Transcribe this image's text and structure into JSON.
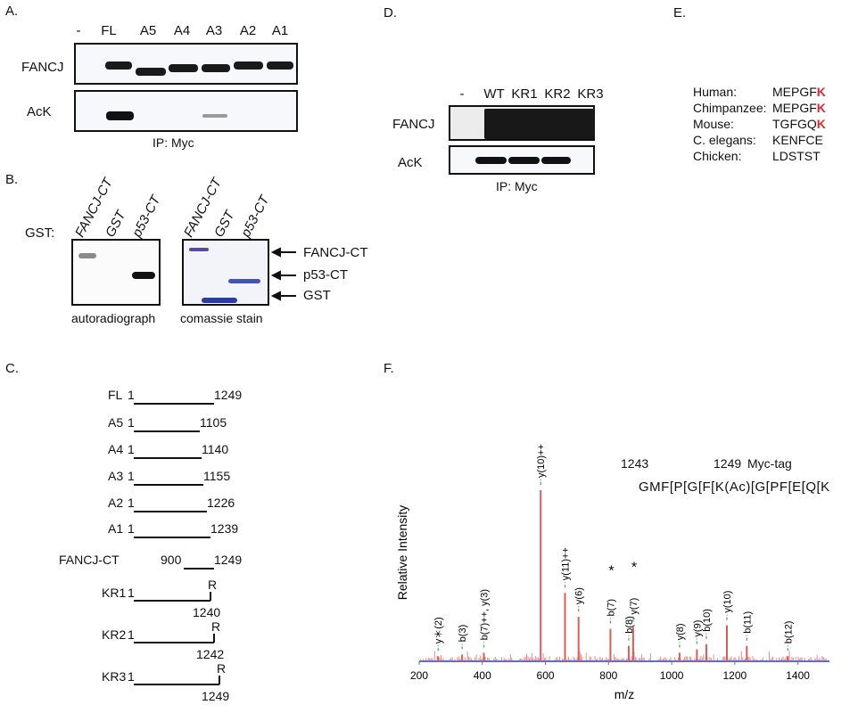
{
  "panel_labels": {
    "a": "A.",
    "b": "B.",
    "c": "C.",
    "d": "D.",
    "e": "E.",
    "f": "F."
  },
  "panel_a": {
    "lanes": [
      "-",
      "FL",
      "A5",
      "A4",
      "A3",
      "A2",
      "A1"
    ],
    "rows": [
      "FANCJ",
      "AcK"
    ],
    "caption": "IP: Myc"
  },
  "panel_b": {
    "gst_label": "GST:",
    "lanes": [
      "FANCJ-CT",
      "GST",
      "p53-CT"
    ],
    "arrows": [
      "FANCJ-CT",
      "p53-CT",
      "GST"
    ],
    "captions": [
      "autoradiograph",
      "comassie stain"
    ]
  },
  "panel_c": {
    "constructs": [
      {
        "name": "FL",
        "start": "1",
        "end": "1249"
      },
      {
        "name": "A5",
        "start": "1",
        "end": "1105"
      },
      {
        "name": "A4",
        "start": "1",
        "end": "1140"
      },
      {
        "name": "A3",
        "start": "1",
        "end": "1155"
      },
      {
        "name": "A2",
        "start": "1",
        "end": "1226"
      },
      {
        "name": "A1",
        "start": "1",
        "end": "1239"
      }
    ],
    "fancj_ct": {
      "name": "FANCJ-CT",
      "start": "900",
      "end": "1249"
    },
    "mutants": [
      {
        "name": "KR1",
        "start": "1",
        "mark": "R",
        "pos": "1240"
      },
      {
        "name": "KR2",
        "start": "1",
        "mark": "R",
        "pos": "1242"
      },
      {
        "name": "KR3",
        "start": "1",
        "mark": "R",
        "pos": "1249"
      }
    ]
  },
  "panel_d": {
    "lanes": [
      "-",
      "WT",
      "KR1",
      "KR2",
      "KR3"
    ],
    "rows": [
      "FANCJ",
      "AcK"
    ],
    "caption": "IP: Myc"
  },
  "panel_e": {
    "species": [
      {
        "name": "Human:",
        "seq": "MEPGF",
        "k": "K"
      },
      {
        "name": "Chimpanzee:",
        "seq": "MEPGF",
        "k": "K"
      },
      {
        "name": "Mouse:",
        "seq": "TGFGQ",
        "k": "K"
      },
      {
        "name": "C. elegans:",
        "seq": "KENFCE",
        "k": ""
      },
      {
        "name": "Chicken:",
        "seq": "LDSTST",
        "k": ""
      }
    ]
  },
  "panel_f": {
    "ylabel": "Relative Intensity",
    "xlabel": "m/z",
    "peptide": {
      "start": "1243",
      "end": "1249",
      "tag": "Myc-tag",
      "sequence": "GMF[P[G[F[K(Ac)[G[PF[E[Q[K"
    },
    "colors": {
      "peak": "#e15a5a",
      "label_line": "#2fb34a",
      "baseline": "#5b6fd6",
      "bracket": "#2a8fbd"
    },
    "chart_data": {
      "type": "bar",
      "xlim": [
        200,
        1500
      ],
      "ylim": [
        0,
        100
      ],
      "xticks": [
        200,
        400,
        600,
        800,
        1000,
        1200,
        1400
      ],
      "peaks": [
        {
          "x": 260,
          "y": 3,
          "label": "y＊(2)"
        },
        {
          "x": 336,
          "y": 4,
          "label": "b(3)"
        },
        {
          "x": 405,
          "y": 5,
          "label": "b(7)++, y(3)"
        },
        {
          "x": 585,
          "y": 100,
          "label": "y(10)++"
        },
        {
          "x": 662,
          "y": 40,
          "label": "y(11)++"
        },
        {
          "x": 705,
          "y": 26,
          "label": "y(6)"
        },
        {
          "x": 806,
          "y": 19,
          "label": "b(7)"
        },
        {
          "x": 864,
          "y": 9,
          "label": "b(8)"
        },
        {
          "x": 878,
          "y": 20,
          "label": "y(7)"
        },
        {
          "x": 1025,
          "y": 5,
          "label": "y(8)"
        },
        {
          "x": 1080,
          "y": 7,
          "label": "y(9)"
        },
        {
          "x": 1110,
          "y": 10,
          "label": "b(10)"
        },
        {
          "x": 1175,
          "y": 21,
          "label": "y(10)"
        },
        {
          "x": 1238,
          "y": 9,
          "label": "b(11)"
        },
        {
          "x": 1368,
          "y": 3,
          "label": "b(12)"
        }
      ],
      "star_marks": [
        "*",
        "*"
      ]
    }
  }
}
